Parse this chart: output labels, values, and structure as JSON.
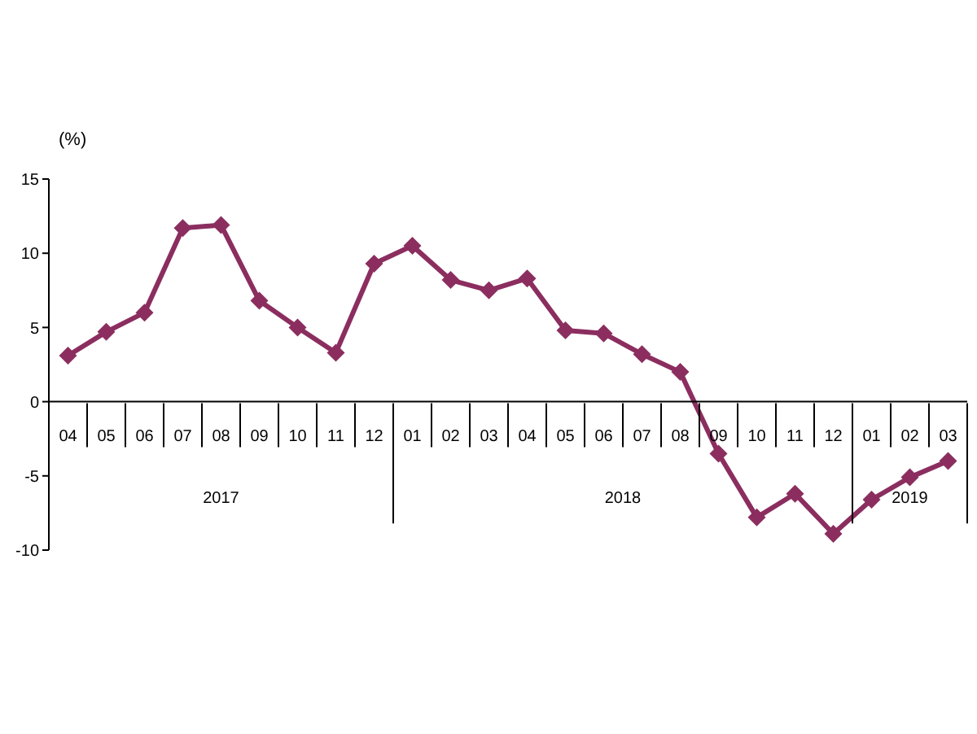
{
  "chart_data": {
    "type": "line",
    "ylabel": "(%)",
    "categories": [
      "04",
      "05",
      "06",
      "07",
      "08",
      "09",
      "10",
      "11",
      "12",
      "01",
      "02",
      "03",
      "04",
      "05",
      "06",
      "07",
      "08",
      "09",
      "10",
      "11",
      "12",
      "01",
      "02",
      "03"
    ],
    "annotations": [
      "2017",
      "2018",
      "2019"
    ],
    "series": [
      {
        "color": "#8b2e5f",
        "values": [
          3.1,
          4.7,
          6.0,
          11.7,
          11.9,
          6.8,
          5.0,
          3.3,
          9.3,
          10.5,
          8.2,
          7.5,
          8.3,
          4.8,
          4.6,
          3.2,
          2.0,
          -3.5,
          -7.8,
          -6.2,
          -8.9,
          -6.6,
          -5.1,
          -4.0
        ]
      }
    ],
    "ylim": [
      -10,
      15
    ],
    "yticks": [
      -10,
      -5,
      0,
      5,
      10,
      15
    ],
    "legend": false,
    "marker": "diamond",
    "line_style": "solid"
  }
}
